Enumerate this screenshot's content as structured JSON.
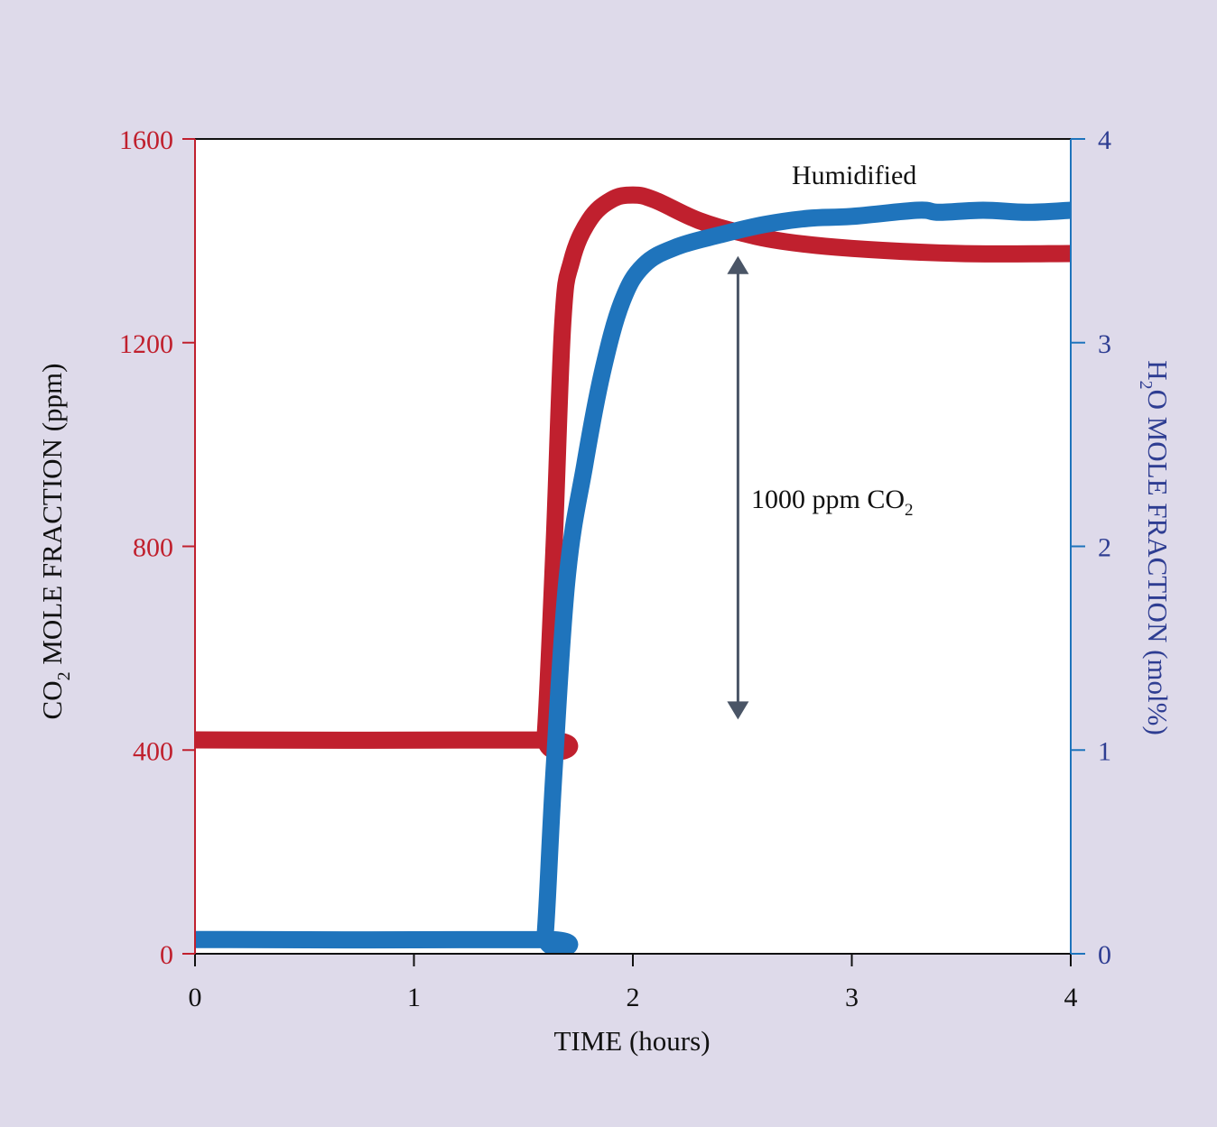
{
  "colors": {
    "background": "#dedaea",
    "co2": "#c0202e",
    "h2o": "#1f74bc",
    "h2o_axis_title": "#2e3d92",
    "arrow": "#4a5566"
  },
  "chart_data": {
    "type": "line",
    "title": "",
    "grid": false,
    "x": {
      "label": "TIME (hours)",
      "range": [
        0,
        4
      ],
      "ticks": [
        "0",
        "1",
        "2",
        "3",
        "4"
      ]
    },
    "y_left": {
      "label_parts": [
        "CO",
        "2",
        " MOLE FRACTION (ppm)"
      ],
      "range": [
        0,
        1600
      ],
      "ticks": [
        "0",
        "400",
        "800",
        "1200",
        "1600"
      ]
    },
    "y_right": {
      "label_parts": [
        "H",
        "2",
        "O MOLE FRACTION (mol%)"
      ],
      "range": [
        0,
        4
      ],
      "ticks": [
        "0",
        "1",
        "2",
        "3",
        "4"
      ]
    },
    "series": [
      {
        "axis": "left",
        "color": "#c0202e",
        "points": [
          [
            0,
            420
          ],
          [
            1.58,
            420
          ],
          [
            1.6,
            430
          ],
          [
            1.64,
            800
          ],
          [
            1.68,
            1240
          ],
          [
            1.72,
            1360
          ],
          [
            1.8,
            1440
          ],
          [
            1.9,
            1480
          ],
          [
            2.0,
            1490
          ],
          [
            2.1,
            1480
          ],
          [
            2.3,
            1440
          ],
          [
            2.5,
            1415
          ],
          [
            2.7,
            1398
          ],
          [
            3.0,
            1385
          ],
          [
            3.5,
            1375
          ],
          [
            4.0,
            1375
          ]
        ]
      },
      {
        "axis": "right",
        "color": "#1f74bc",
        "points": [
          [
            0,
            0.07
          ],
          [
            1.58,
            0.07
          ],
          [
            1.6,
            0.1
          ],
          [
            1.64,
            0.9
          ],
          [
            1.7,
            1.85
          ],
          [
            1.78,
            2.4
          ],
          [
            1.86,
            2.85
          ],
          [
            1.95,
            3.2
          ],
          [
            2.05,
            3.38
          ],
          [
            2.2,
            3.47
          ],
          [
            2.4,
            3.53
          ],
          [
            2.6,
            3.58
          ],
          [
            2.8,
            3.61
          ],
          [
            3.0,
            3.62
          ],
          [
            3.3,
            3.65
          ],
          [
            3.4,
            3.64
          ],
          [
            3.6,
            3.65
          ],
          [
            3.8,
            3.64
          ],
          [
            4.0,
            3.65
          ]
        ]
      }
    ],
    "annotations": {
      "humidified": "Humidified",
      "delta_text": "1000 ppm CO",
      "delta_sub": "2",
      "delta_arrow": {
        "x": 2.48,
        "from": 460,
        "to": 1370
      }
    }
  }
}
